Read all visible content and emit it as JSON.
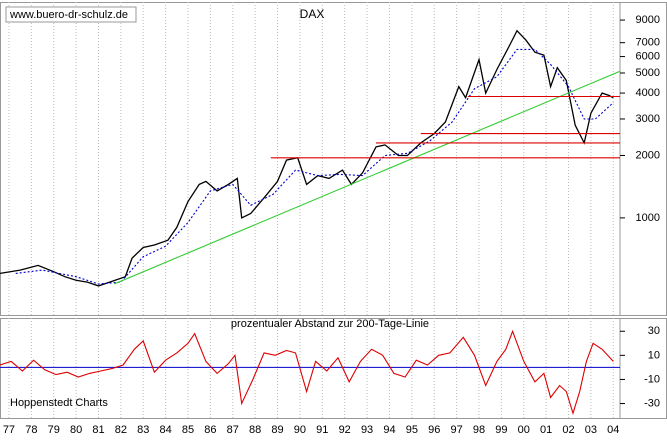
{
  "chart_data": [
    {
      "type": "line",
      "title": "DAX",
      "source": "www.buero-dr-schulz.de",
      "log_scale": true,
      "xlim": [
        1977.1,
        2004.8
      ],
      "ylim": [
        340,
        11000
      ],
      "yticks": [
        1000,
        2000,
        3000,
        4000,
        5000,
        6000,
        7000,
        9000
      ],
      "series": [
        {
          "color": "#000000",
          "style": "solid",
          "x": [
            1977.1,
            1978,
            1978.8,
            1979.5,
            1980,
            1980.5,
            1981,
            1981.5,
            1982,
            1982.7,
            1983,
            1983.5,
            1984,
            1984.6,
            1985,
            1985.5,
            1986,
            1986.3,
            1986.8,
            1987.3,
            1987.7,
            1987.9,
            1988.3,
            1988.9,
            1989.5,
            1989.9,
            1990.4,
            1990.8,
            1991.3,
            1991.8,
            1992.4,
            1992.8,
            1993.3,
            1993.9,
            1994.3,
            1994.9,
            1995.3,
            1995.9,
            1996.5,
            1997,
            1997.6,
            1997.9,
            1998.5,
            1998.8,
            1999.3,
            1999.9,
            2000.2,
            2000.6,
            2001,
            2001.4,
            2001.7,
            2002,
            2002.4,
            2002.8,
            2003.2,
            2003.5,
            2004,
            2004.3,
            2004.5
          ],
          "values": [
            540,
            560,
            590,
            550,
            520,
            500,
            490,
            470,
            490,
            520,
            640,
            720,
            740,
            780,
            900,
            1200,
            1450,
            1500,
            1350,
            1450,
            1550,
            1000,
            1050,
            1250,
            1500,
            1900,
            1950,
            1450,
            1600,
            1550,
            1700,
            1450,
            1650,
            2200,
            2250,
            2000,
            2000,
            2300,
            2550,
            2900,
            4300,
            3800,
            5800,
            4000,
            5200,
            6900,
            8000,
            7200,
            6300,
            6100,
            4300,
            5300,
            4600,
            2800,
            2300,
            3200,
            4000,
            3900,
            3800
          ]
        },
        {
          "color": "#0000cc",
          "style": "dashed",
          "x": [
            1977.8,
            1979,
            1980.5,
            1981.5,
            1982.5,
            1983.5,
            1984.5,
            1985.5,
            1986.5,
            1987.5,
            1988.3,
            1989.3,
            1990.3,
            1991.3,
            1992.3,
            1993.3,
            1994.3,
            1995.3,
            1996.3,
            1997.3,
            1998.3,
            1999.3,
            2000.2,
            2001,
            2001.7,
            2002.5,
            2003.2,
            2003.7,
            2004.5
          ],
          "values": [
            540,
            560,
            520,
            480,
            490,
            650,
            730,
            950,
            1350,
            1450,
            1150,
            1300,
            1700,
            1600,
            1620,
            1600,
            2000,
            2050,
            2350,
            2900,
            4200,
            4800,
            6500,
            6500,
            5500,
            4300,
            3000,
            3000,
            3600
          ]
        },
        {
          "color": "#33cc33",
          "style": "solid",
          "x": [
            1982.2,
            2004.8
          ],
          "values": [
            480,
            5100
          ]
        },
        {
          "color": "#dd0000",
          "style": "solid",
          "x": [
            1989.2,
            2004.8
          ],
          "values": [
            1950,
            1950
          ]
        },
        {
          "color": "#dd0000",
          "style": "solid",
          "x": [
            1993.9,
            2004.8
          ],
          "values": [
            2300,
            2300
          ]
        },
        {
          "color": "#dd0000",
          "style": "solid",
          "x": [
            1995.9,
            2004.8
          ],
          "values": [
            2550,
            2550
          ]
        },
        {
          "color": "#dd0000",
          "style": "solid",
          "x": [
            1998.0,
            2004.8
          ],
          "values": [
            3850,
            3850
          ]
        }
      ]
    },
    {
      "type": "line",
      "title": "prozentualer Abstand zur 200-Tage-Linie",
      "annotation": "Hoppenstedt Charts",
      "xlim": [
        1977.1,
        2004.8
      ],
      "ylim": [
        -42,
        41
      ],
      "yticks": [
        -30,
        -10,
        10,
        30
      ],
      "hline": 0,
      "hline_color": "#0000cc",
      "xticks": [
        {
          "value": 1977.5,
          "label": "77"
        },
        {
          "value": 1978.5,
          "label": "78"
        },
        {
          "value": 1979.5,
          "label": "79"
        },
        {
          "value": 1980.5,
          "label": "80"
        },
        {
          "value": 1981.5,
          "label": "81"
        },
        {
          "value": 1982.5,
          "label": "82"
        },
        {
          "value": 1983.5,
          "label": "83"
        },
        {
          "value": 1984.5,
          "label": "84"
        },
        {
          "value": 1985.5,
          "label": "85"
        },
        {
          "value": 1986.5,
          "label": "86"
        },
        {
          "value": 1987.5,
          "label": "87"
        },
        {
          "value": 1988.5,
          "label": "88"
        },
        {
          "value": 1989.5,
          "label": "89"
        },
        {
          "value": 1990.5,
          "label": "90"
        },
        {
          "value": 1991.5,
          "label": "91"
        },
        {
          "value": 1992.5,
          "label": "92"
        },
        {
          "value": 1993.5,
          "label": "93"
        },
        {
          "value": 1994.5,
          "label": "94"
        },
        {
          "value": 1995.5,
          "label": "95"
        },
        {
          "value": 1996.5,
          "label": "96"
        },
        {
          "value": 1997.5,
          "label": "97"
        },
        {
          "value": 1998.5,
          "label": "98"
        },
        {
          "value": 1999.5,
          "label": "99"
        },
        {
          "value": 2000.5,
          "label": "00"
        },
        {
          "value": 2001.5,
          "label": "01"
        },
        {
          "value": 2002.5,
          "label": "02"
        },
        {
          "value": 2003.5,
          "label": "03"
        },
        {
          "value": 2004.5,
          "label": "04"
        }
      ],
      "series": [
        {
          "color": "#dd0000",
          "style": "solid",
          "x": [
            1977.1,
            1977.6,
            1978.1,
            1978.6,
            1979.1,
            1979.6,
            1980.1,
            1980.6,
            1981.1,
            1981.6,
            1982.1,
            1982.6,
            1983.1,
            1983.5,
            1984,
            1984.5,
            1985,
            1985.5,
            1985.8,
            1986.3,
            1986.8,
            1987.3,
            1987.6,
            1987.9,
            1988.4,
            1988.9,
            1989.4,
            1989.9,
            1990.3,
            1990.8,
            1991.2,
            1991.7,
            1992.2,
            1992.7,
            1993.2,
            1993.7,
            1994.2,
            1994.7,
            1995.2,
            1995.7,
            1996.2,
            1996.7,
            1997.2,
            1997.8,
            1998.3,
            1998.8,
            1999.3,
            1999.7,
            2000,
            2000.5,
            2001,
            2001.4,
            2001.7,
            2002.1,
            2002.4,
            2002.7,
            2003.0,
            2003.3,
            2003.6,
            2004,
            2004.5
          ],
          "values": [
            2,
            5,
            -3,
            6,
            -2,
            -6,
            -4,
            -8,
            -5,
            -3,
            -1,
            2,
            15,
            22,
            -4,
            6,
            12,
            20,
            28,
            5,
            -5,
            3,
            10,
            -30,
            -10,
            12,
            10,
            14,
            12,
            -20,
            5,
            -3,
            8,
            -12,
            5,
            15,
            10,
            -5,
            -8,
            6,
            2,
            10,
            12,
            25,
            10,
            -15,
            5,
            15,
            30,
            5,
            -12,
            -5,
            -25,
            -15,
            -20,
            -38,
            -20,
            5,
            20,
            15,
            5
          ]
        }
      ]
    }
  ]
}
